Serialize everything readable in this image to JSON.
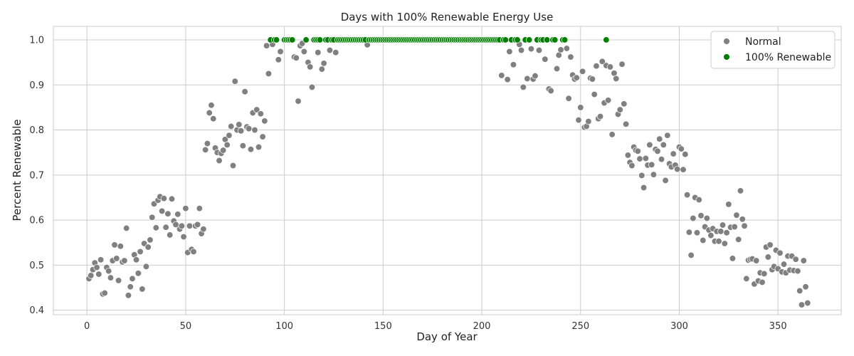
{
  "chart_data": {
    "type": "scatter",
    "title": "Days with 100% Renewable Energy Use",
    "xlabel": "Day of Year",
    "ylabel": "Percent Renewable",
    "xlim": [
      -17,
      382
    ],
    "ylim": [
      0.39,
      1.03
    ],
    "xticks": [
      0,
      50,
      100,
      150,
      200,
      250,
      300,
      350
    ],
    "yticks": [
      0.4,
      0.5,
      0.6,
      0.7,
      0.8,
      0.9,
      1.0
    ],
    "ytick_labels": [
      "0.4",
      "0.5",
      "0.6",
      "0.7",
      "0.8",
      "0.9",
      "1.0"
    ],
    "grid": true,
    "legend_position": "top-right",
    "series": [
      {
        "name": "Normal",
        "color": "#808080",
        "points": [
          [
            1,
            0.47
          ],
          [
            2,
            0.477
          ],
          [
            3,
            0.49
          ],
          [
            4,
            0.505
          ],
          [
            5,
            0.495
          ],
          [
            6,
            0.48
          ],
          [
            7,
            0.512
          ],
          [
            8,
            0.436
          ],
          [
            9,
            0.438
          ],
          [
            10,
            0.495
          ],
          [
            11,
            0.487
          ],
          [
            12,
            0.472
          ],
          [
            13,
            0.51
          ],
          [
            14,
            0.545
          ],
          [
            15,
            0.515
          ],
          [
            16,
            0.466
          ],
          [
            17,
            0.542
          ],
          [
            18,
            0.507
          ],
          [
            19,
            0.51
          ],
          [
            20,
            0.582
          ],
          [
            21,
            0.433
          ],
          [
            22,
            0.452
          ],
          [
            23,
            0.47
          ],
          [
            24,
            0.523
          ],
          [
            25,
            0.512
          ],
          [
            26,
            0.482
          ],
          [
            27,
            0.53
          ],
          [
            28,
            0.447
          ],
          [
            29,
            0.548
          ],
          [
            30,
            0.497
          ],
          [
            31,
            0.54
          ],
          [
            32,
            0.556
          ],
          [
            33,
            0.606
          ],
          [
            34,
            0.636
          ],
          [
            35,
            0.583
          ],
          [
            36,
            0.644
          ],
          [
            37,
            0.652
          ],
          [
            38,
            0.62
          ],
          [
            39,
            0.648
          ],
          [
            40,
            0.584
          ],
          [
            41,
            0.614
          ],
          [
            42,
            0.567
          ],
          [
            43,
            0.647
          ],
          [
            44,
            0.598
          ],
          [
            45,
            0.59
          ],
          [
            46,
            0.613
          ],
          [
            47,
            0.58
          ],
          [
            48,
            0.587
          ],
          [
            49,
            0.563
          ],
          [
            50,
            0.626
          ],
          [
            51,
            0.528
          ],
          [
            52,
            0.587
          ],
          [
            53,
            0.535
          ],
          [
            54,
            0.53
          ],
          [
            55,
            0.587
          ],
          [
            56,
            0.59
          ],
          [
            57,
            0.626
          ],
          [
            58,
            0.57
          ],
          [
            59,
            0.58
          ],
          [
            60,
            0.756
          ],
          [
            61,
            0.77
          ],
          [
            62,
            0.838
          ],
          [
            63,
            0.855
          ],
          [
            64,
            0.825
          ],
          [
            65,
            0.76
          ],
          [
            66,
            0.75
          ],
          [
            67,
            0.732
          ],
          [
            68,
            0.748
          ],
          [
            69,
            0.755
          ],
          [
            70,
            0.779
          ],
          [
            71,
            0.767
          ],
          [
            72,
            0.788
          ],
          [
            73,
            0.808
          ],
          [
            74,
            0.721
          ],
          [
            75,
            0.908
          ],
          [
            76,
            0.8
          ],
          [
            77,
            0.812
          ],
          [
            78,
            0.798
          ],
          [
            79,
            0.765
          ],
          [
            80,
            0.885
          ],
          [
            81,
            0.807
          ],
          [
            82,
            0.803
          ],
          [
            83,
            0.757
          ],
          [
            84,
            0.838
          ],
          [
            85,
            0.8
          ],
          [
            86,
            0.845
          ],
          [
            87,
            0.762
          ],
          [
            88,
            0.836
          ],
          [
            89,
            0.785
          ],
          [
            90,
            0.82
          ],
          [
            91,
            0.987
          ],
          [
            92,
            0.925
          ],
          [
            94,
            0.99
          ],
          [
            97,
            0.956
          ],
          [
            98,
            0.974
          ],
          [
            105,
            0.962
          ],
          [
            106,
            0.96
          ],
          [
            107,
            0.864
          ],
          [
            108,
            0.987
          ],
          [
            109,
            0.992
          ],
          [
            110,
            0.974
          ],
          [
            112,
            0.95
          ],
          [
            113,
            0.94
          ],
          [
            114,
            0.895
          ],
          [
            117,
            0.972
          ],
          [
            119,
            0.935
          ],
          [
            120,
            0.948
          ],
          [
            123,
            0.977
          ],
          [
            126,
            0.972
          ],
          [
            142,
            0.989
          ],
          [
            210,
            0.921
          ],
          [
            213,
            0.912
          ],
          [
            214,
            0.974
          ],
          [
            216,
            0.945
          ],
          [
            219,
            0.99
          ],
          [
            220,
            0.977
          ],
          [
            221,
            0.895
          ],
          [
            223,
            0.914
          ],
          [
            225,
            0.98
          ],
          [
            226,
            0.913
          ],
          [
            227,
            0.92
          ],
          [
            229,
            0.977
          ],
          [
            232,
            0.957
          ],
          [
            234,
            0.891
          ],
          [
            235,
            0.887
          ],
          [
            238,
            0.936
          ],
          [
            239,
            0.966
          ],
          [
            240,
            0.978
          ],
          [
            243,
            0.981
          ],
          [
            244,
            0.87
          ],
          [
            245,
            0.962
          ],
          [
            246,
            0.922
          ],
          [
            247,
            0.913
          ],
          [
            248,
            0.916
          ],
          [
            249,
            0.822
          ],
          [
            250,
            0.85
          ],
          [
            251,
            0.93
          ],
          [
            252,
            0.806
          ],
          [
            253,
            0.808
          ],
          [
            254,
            0.819
          ],
          [
            255,
            0.915
          ],
          [
            256,
            0.913
          ],
          [
            257,
            0.879
          ],
          [
            258,
            0.942
          ],
          [
            259,
            0.825
          ],
          [
            260,
            0.83
          ],
          [
            261,
            0.952
          ],
          [
            262,
            0.86
          ],
          [
            263,
            0.943
          ],
          [
            264,
            0.866
          ],
          [
            265,
            0.94
          ],
          [
            266,
            0.79
          ],
          [
            267,
            0.926
          ],
          [
            268,
            0.914
          ],
          [
            269,
            0.835
          ],
          [
            270,
            0.845
          ],
          [
            271,
            0.946
          ],
          [
            272,
            0.858
          ],
          [
            273,
            0.813
          ],
          [
            274,
            0.744
          ],
          [
            275,
            0.728
          ],
          [
            276,
            0.721
          ],
          [
            277,
            0.762
          ],
          [
            278,
            0.755
          ],
          [
            279,
            0.753
          ],
          [
            280,
            0.736
          ],
          [
            281,
            0.699
          ],
          [
            282,
            0.672
          ],
          [
            283,
            0.737
          ],
          [
            284,
            0.722
          ],
          [
            285,
            0.767
          ],
          [
            286,
            0.723
          ],
          [
            287,
            0.701
          ],
          [
            288,
            0.757
          ],
          [
            289,
            0.753
          ],
          [
            290,
            0.78
          ],
          [
            291,
            0.735
          ],
          [
            292,
            0.767
          ],
          [
            293,
            0.688
          ],
          [
            294,
            0.788
          ],
          [
            295,
            0.725
          ],
          [
            296,
            0.718
          ],
          [
            297,
            0.747
          ],
          [
            298,
            0.722
          ],
          [
            299,
            0.713
          ],
          [
            300,
            0.762
          ],
          [
            301,
            0.758
          ],
          [
            302,
            0.712
          ],
          [
            303,
            0.746
          ],
          [
            304,
            0.656
          ],
          [
            305,
            0.573
          ],
          [
            306,
            0.522
          ],
          [
            307,
            0.604
          ],
          [
            308,
            0.65
          ],
          [
            309,
            0.572
          ],
          [
            310,
            0.645
          ],
          [
            311,
            0.61
          ],
          [
            312,
            0.555
          ],
          [
            313,
            0.585
          ],
          [
            314,
            0.604
          ],
          [
            315,
            0.578
          ],
          [
            316,
            0.566
          ],
          [
            317,
            0.581
          ],
          [
            318,
            0.553
          ],
          [
            319,
            0.575
          ],
          [
            320,
            0.553
          ],
          [
            321,
            0.575
          ],
          [
            322,
            0.589
          ],
          [
            323,
            0.548
          ],
          [
            324,
            0.572
          ],
          [
            325,
            0.635
          ],
          [
            326,
            0.584
          ],
          [
            327,
            0.515
          ],
          [
            328,
            0.585
          ],
          [
            329,
            0.611
          ],
          [
            330,
            0.557
          ],
          [
            331,
            0.665
          ],
          [
            332,
            0.602
          ],
          [
            333,
            0.587
          ],
          [
            334,
            0.47
          ],
          [
            335,
            0.511
          ],
          [
            336,
            0.513
          ],
          [
            337,
            0.514
          ],
          [
            338,
            0.458
          ],
          [
            339,
            0.51
          ],
          [
            340,
            0.465
          ],
          [
            341,
            0.483
          ],
          [
            342,
            0.462
          ],
          [
            343,
            0.481
          ],
          [
            344,
            0.54
          ],
          [
            345,
            0.518
          ],
          [
            346,
            0.545
          ],
          [
            347,
            0.49
          ],
          [
            348,
            0.497
          ],
          [
            349,
            0.533
          ],
          [
            350,
            0.492
          ],
          [
            351,
            0.527
          ],
          [
            352,
            0.485
          ],
          [
            353,
            0.502
          ],
          [
            354,
            0.483
          ],
          [
            355,
            0.52
          ],
          [
            356,
            0.489
          ],
          [
            357,
            0.52
          ],
          [
            358,
            0.488
          ],
          [
            359,
            0.513
          ],
          [
            360,
            0.487
          ],
          [
            361,
            0.443
          ],
          [
            362,
            0.412
          ],
          [
            363,
            0.51
          ],
          [
            364,
            0.452
          ],
          [
            365,
            0.416
          ]
        ]
      },
      {
        "name": "100% Renewable",
        "color": "#008000",
        "x": [
          93,
          95,
          96,
          100,
          101,
          102,
          103,
          104,
          111,
          115,
          116,
          117,
          118,
          121,
          122,
          124,
          125,
          127,
          128,
          129,
          130,
          131,
          132,
          133,
          134,
          135,
          136,
          137,
          138,
          139,
          140,
          141,
          143,
          144,
          145,
          146,
          147,
          148,
          149,
          150,
          151,
          152,
          153,
          154,
          155,
          156,
          157,
          158,
          159,
          160,
          161,
          162,
          163,
          164,
          165,
          166,
          167,
          168,
          169,
          170,
          171,
          172,
          173,
          174,
          175,
          176,
          177,
          178,
          179,
          180,
          181,
          182,
          183,
          184,
          185,
          186,
          187,
          188,
          189,
          190,
          191,
          192,
          193,
          194,
          195,
          196,
          197,
          198,
          199,
          200,
          201,
          202,
          203,
          204,
          205,
          206,
          207,
          208,
          209,
          211,
          212,
          215,
          217,
          218,
          222,
          224,
          228,
          230,
          231,
          233,
          236,
          237,
          241,
          242,
          263
        ],
        "y": 1.0
      }
    ]
  },
  "legend": {
    "items": [
      {
        "label": "Normal",
        "color": "#808080"
      },
      {
        "label": "100% Renewable",
        "color": "#008000"
      }
    ]
  }
}
